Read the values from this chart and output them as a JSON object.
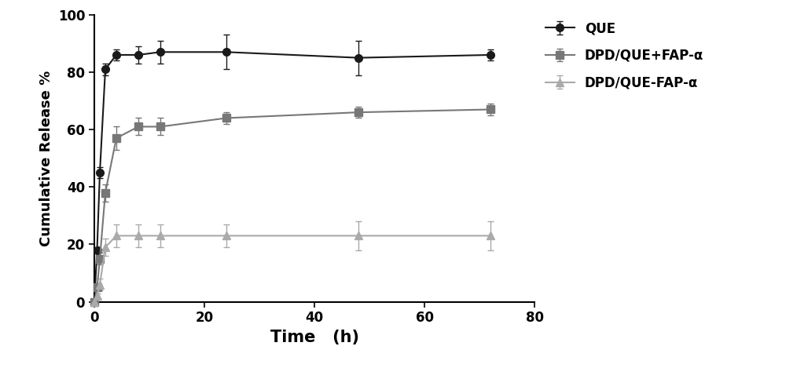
{
  "QUE": {
    "x": [
      0,
      0.5,
      1,
      2,
      4,
      8,
      12,
      24,
      48,
      72
    ],
    "y": [
      0,
      18,
      45,
      81,
      86,
      86,
      87,
      87,
      85,
      86
    ],
    "yerr": [
      0,
      1,
      2,
      2,
      2,
      3,
      4,
      6,
      6,
      2
    ],
    "color": "#1a1a1a",
    "marker": "o",
    "markersize": 7,
    "label": "QUE"
  },
  "DPD_QUE_FAP_plus": {
    "x": [
      0,
      0.5,
      1,
      2,
      4,
      8,
      12,
      24,
      48,
      72
    ],
    "y": [
      0,
      5,
      15,
      38,
      57,
      61,
      61,
      64,
      66,
      67
    ],
    "yerr": [
      0,
      1,
      2,
      3,
      4,
      3,
      3,
      2,
      2,
      2
    ],
    "color": "#777777",
    "marker": "s",
    "markersize": 7,
    "label": "DPD/QUE+FAP-α"
  },
  "DPD_QUE_FAP": {
    "x": [
      0,
      0.5,
      1,
      2,
      4,
      8,
      12,
      24,
      48,
      72
    ],
    "y": [
      0,
      2,
      6,
      19,
      23,
      23,
      23,
      23,
      23,
      23
    ],
    "yerr": [
      0,
      1,
      2,
      3,
      4,
      4,
      4,
      4,
      5,
      5
    ],
    "color": "#aaaaaa",
    "marker": "^",
    "markersize": 7,
    "label": "DPD/QUE-FAP-α"
  },
  "xlabel": "Time   (h)",
  "ylabel": "Cumulative Release %",
  "xlim": [
    0,
    80
  ],
  "ylim": [
    0,
    100
  ],
  "xticks": [
    0,
    20,
    40,
    60,
    80
  ],
  "yticks": [
    0,
    20,
    40,
    60,
    80,
    100
  ],
  "background_color": "#ffffff",
  "linewidth": 1.5,
  "capsize": 3,
  "elinewidth": 1.0,
  "xlabel_fontsize": 15,
  "ylabel_fontsize": 13,
  "tick_fontsize": 12,
  "legend_fontsize": 12
}
